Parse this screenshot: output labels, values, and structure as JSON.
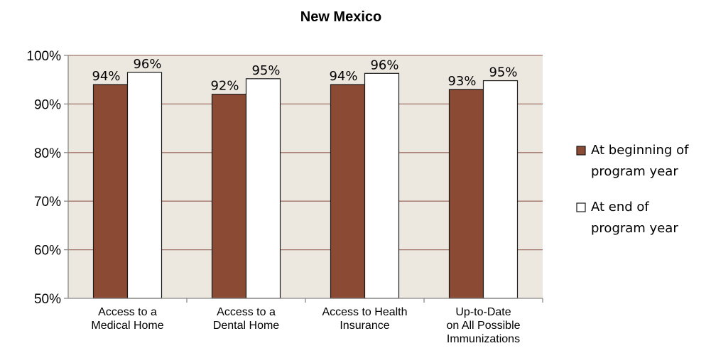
{
  "chart_data": {
    "type": "bar",
    "title": "New Mexico",
    "categories": [
      [
        "Access to a",
        "Medical Home"
      ],
      [
        "Access to a",
        "Dental Home"
      ],
      [
        "Access to Health",
        "Insurance"
      ],
      [
        "Up-to-Date",
        "on All Possible",
        "Immunizations"
      ]
    ],
    "series": [
      {
        "name": [
          "At beginning of",
          "program year"
        ],
        "values": [
          94,
          92,
          94,
          93
        ],
        "value_labels": [
          "94%",
          "92%",
          "94%",
          "93%"
        ],
        "color": "#8B4A33"
      },
      {
        "name": [
          "At end of",
          "program year"
        ],
        "values": [
          96.5,
          95.2,
          96.3,
          94.8
        ],
        "value_labels": [
          "96%",
          "95%",
          "96%",
          "95%"
        ],
        "color": "#ffffff"
      }
    ],
    "ylim": [
      50,
      100
    ],
    "yticks": [
      "50%",
      "60%",
      "70%",
      "80%",
      "90%",
      "100%"
    ],
    "ytick_values": [
      50,
      60,
      70,
      80,
      90,
      100
    ],
    "grid": true,
    "plot_background": "#ECE8E0",
    "gridline_color": "#A0736A",
    "legend_position": "right"
  }
}
